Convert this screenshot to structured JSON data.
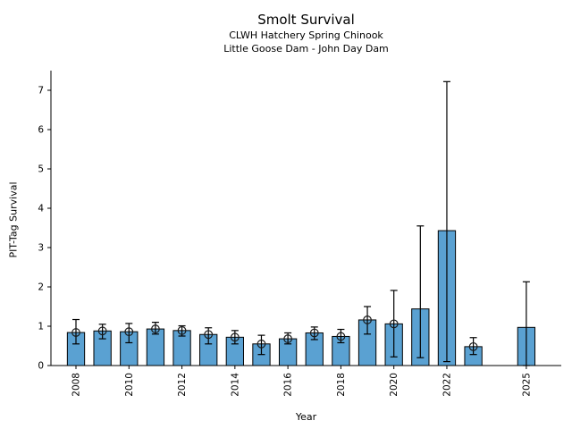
{
  "chart_data": {
    "type": "bar",
    "title": "Smolt Survival",
    "subtitle": [
      "CLWH Hatchery Spring Chinook",
      "Little Goose Dam - John Day Dam"
    ],
    "xlabel": "Year",
    "ylabel": "PIT-Tag Survival",
    "ylim": [
      0,
      7.5
    ],
    "x_ticks": [
      2008,
      2010,
      2012,
      2014,
      2016,
      2018,
      2020,
      2022,
      2025
    ],
    "y_ticks": [
      0,
      1,
      2,
      3,
      4,
      5,
      6,
      7
    ],
    "grid": false,
    "legend": false,
    "bar_color": "#5AA1D2",
    "edge_color": "#000000",
    "points": [
      {
        "year": 2008,
        "value": 0.84,
        "ci_low": 0.55,
        "ci_high": 1.17,
        "marker": true
      },
      {
        "year": 2009,
        "value": 0.88,
        "ci_low": 0.68,
        "ci_high": 1.05,
        "marker": true
      },
      {
        "year": 2010,
        "value": 0.86,
        "ci_low": 0.58,
        "ci_high": 1.07,
        "marker": true
      },
      {
        "year": 2011,
        "value": 0.93,
        "ci_low": 0.8,
        "ci_high": 1.1,
        "marker": true
      },
      {
        "year": 2012,
        "value": 0.89,
        "ci_low": 0.75,
        "ci_high": 1.01,
        "marker": true
      },
      {
        "year": 2013,
        "value": 0.79,
        "ci_low": 0.55,
        "ci_high": 0.96,
        "marker": true
      },
      {
        "year": 2014,
        "value": 0.72,
        "ci_low": 0.55,
        "ci_high": 0.89,
        "marker": true
      },
      {
        "year": 2015,
        "value": 0.55,
        "ci_low": 0.28,
        "ci_high": 0.77,
        "marker": true
      },
      {
        "year": 2016,
        "value": 0.68,
        "ci_low": 0.55,
        "ci_high": 0.83,
        "marker": true
      },
      {
        "year": 2017,
        "value": 0.83,
        "ci_low": 0.66,
        "ci_high": 0.98,
        "marker": true
      },
      {
        "year": 2018,
        "value": 0.74,
        "ci_low": 0.58,
        "ci_high": 0.92,
        "marker": true
      },
      {
        "year": 2019,
        "value": 1.16,
        "ci_low": 0.8,
        "ci_high": 1.5,
        "marker": true
      },
      {
        "year": 2020,
        "value": 1.06,
        "ci_low": 0.22,
        "ci_high": 1.91,
        "marker": true
      },
      {
        "year": 2021,
        "value": 1.44,
        "ci_low": 0.2,
        "ci_high": 3.55,
        "marker": false
      },
      {
        "year": 2022,
        "value": 3.43,
        "ci_low": 0.1,
        "ci_high": 7.22,
        "marker": false
      },
      {
        "year": 2023,
        "value": 0.48,
        "ci_low": 0.28,
        "ci_high": 0.71,
        "marker": true
      },
      {
        "year": 2025,
        "value": 0.97,
        "ci_low": 0.0,
        "ci_high": 2.13,
        "marker": false
      }
    ]
  }
}
